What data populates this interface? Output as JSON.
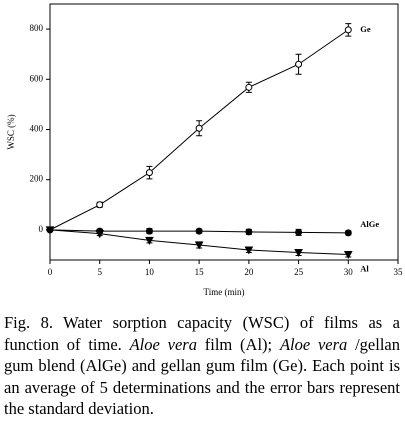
{
  "chart_data": {
    "type": "line",
    "x_label": "Time (min)",
    "y_label": "WSC (%)",
    "x": [
      0,
      5,
      10,
      15,
      20,
      25,
      30
    ],
    "series": [
      {
        "name": "Ge",
        "color": "#000000",
        "marker": "open-circle",
        "values": [
          0,
          100,
          228,
          405,
          568,
          660,
          797
        ],
        "errors": [
          0,
          10,
          25,
          30,
          20,
          40,
          25
        ]
      },
      {
        "name": "AlGe",
        "color": "#000000",
        "marker": "circle",
        "values": [
          0,
          -5,
          -5,
          -5,
          -8,
          -10,
          -12
        ],
        "errors": [
          0,
          8,
          10,
          8,
          10,
          12,
          8
        ]
      },
      {
        "name": "Al",
        "color": "#000000",
        "marker": "triangle-down",
        "values": [
          0,
          -15,
          -42,
          -60,
          -80,
          -90,
          -98
        ],
        "errors": [
          0,
          8,
          10,
          12,
          10,
          12,
          10
        ]
      }
    ],
    "xlim": [
      0,
      35
    ],
    "xticks": [
      0,
      5,
      10,
      15,
      20,
      25,
      30,
      35
    ],
    "ylim": [
      -120,
      900
    ],
    "yticks": [
      0,
      200,
      400,
      600,
      800
    ]
  },
  "caption": {
    "parts": [
      {
        "text": "Fig. 8. Water sorption capacity (WSC) of films as a function of time. ",
        "italic": false
      },
      {
        "text": "Aloe vera",
        "italic": true
      },
      {
        "text": " film (Al); ",
        "italic": false
      },
      {
        "text": "Aloe vera",
        "italic": true
      },
      {
        "text": " /gellan gum blend (AlGe) and gellan gum film (Ge).  Each point is an average of 5 determinations and the error bars represent the standard deviation.",
        "italic": false
      }
    ]
  }
}
